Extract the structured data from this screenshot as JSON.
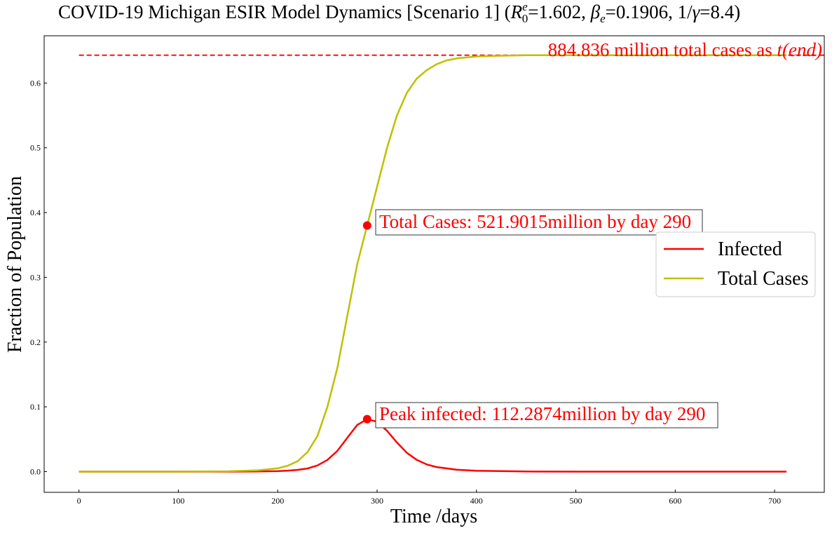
{
  "chart_data": {
    "type": "line",
    "title": "COVID-19 Michigan ESIR Model Dynamics [Scenario 1] (",
    "title_params": {
      "r0_symbol": "R",
      "r0_sup": "e",
      "r0_sub": "0",
      "r0_value": "=1.602, ",
      "beta_symbol": "β",
      "beta_sub": "e",
      "beta_value": "=0.1906, 1/",
      "gamma_symbol": "γ",
      "gamma_value": "=8.4)"
    },
    "xlabel": "Time /days",
    "ylabel": "Fraction of Population",
    "xlim": [
      -35,
      750
    ],
    "ylim": [
      -0.032,
      0.673
    ],
    "xticks": [
      0,
      100,
      200,
      300,
      400,
      500,
      600,
      700
    ],
    "yticks": [
      0.0,
      0.1,
      0.2,
      0.3,
      0.4,
      0.5,
      0.6
    ],
    "ytick_labels": [
      "0.0",
      "0.1",
      "0.2",
      "0.3",
      "0.4",
      "0.5",
      "0.6"
    ],
    "grid": false,
    "legend_position": "center-right",
    "colors": {
      "infected": "#ff0000",
      "total": "#bfbf00",
      "annotation": "#ff0000"
    },
    "series": [
      {
        "name": "Infected",
        "color": "#ff0000",
        "x": [
          0,
          100,
          150,
          180,
          200,
          210,
          220,
          230,
          240,
          250,
          260,
          270,
          280,
          290,
          300,
          310,
          320,
          330,
          340,
          350,
          360,
          380,
          400,
          450,
          500,
          600,
          712
        ],
        "y": [
          0.0,
          0.0,
          0.0,
          0.0003,
          0.0008,
          0.0015,
          0.0027,
          0.0048,
          0.0095,
          0.018,
          0.032,
          0.052,
          0.072,
          0.081,
          0.077,
          0.063,
          0.045,
          0.029,
          0.018,
          0.011,
          0.007,
          0.003,
          0.0012,
          0.0002,
          0.0,
          0.0,
          0.0
        ]
      },
      {
        "name": "Total Cases",
        "color": "#bfbf00",
        "x": [
          0,
          100,
          150,
          180,
          200,
          210,
          220,
          230,
          240,
          250,
          260,
          270,
          280,
          290,
          300,
          310,
          320,
          330,
          340,
          350,
          360,
          370,
          380,
          400,
          420,
          450,
          500,
          600,
          712
        ],
        "y": [
          0.0,
          0.0,
          0.0005,
          0.002,
          0.005,
          0.009,
          0.016,
          0.03,
          0.055,
          0.1,
          0.16,
          0.24,
          0.32,
          0.38,
          0.44,
          0.5,
          0.55,
          0.585,
          0.607,
          0.62,
          0.629,
          0.635,
          0.638,
          0.641,
          0.642,
          0.643,
          0.643,
          0.643,
          0.643
        ]
      }
    ],
    "reference_line": {
      "y": 0.643,
      "x": [
        0,
        750
      ],
      "style": "dashed"
    },
    "markers": [
      {
        "x": 290,
        "y": 0.38
      },
      {
        "x": 290,
        "y": 0.081
      }
    ],
    "annotations": {
      "total_end": "884.836 million total cases as ",
      "total_end_math": "t(end)",
      "total_cases": "Total Cases: 521.9015million by day 290",
      "peak_infected": "Peak infected: 112.2874million by day 290"
    },
    "legend": [
      "Infected",
      "Total Cases"
    ]
  }
}
